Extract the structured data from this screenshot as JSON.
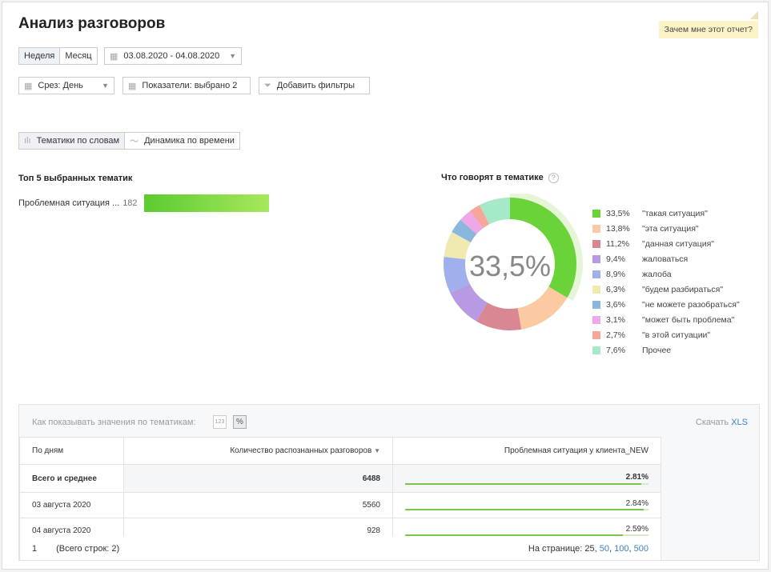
{
  "header": {
    "title": "Анализ разговоров",
    "why_label": "Зачем мне этот отчет?"
  },
  "period": {
    "week": "Неделя",
    "month": "Месяц",
    "date_range": "03.08.2020 - 04.08.2020"
  },
  "filters": {
    "slice": "Срез: День",
    "metrics": "Показатели: выбрано 2",
    "add_filters": "Добавить фильтры"
  },
  "tabs": [
    {
      "label": "Тематики по словам",
      "active": true
    },
    {
      "label": "Динамика по времени",
      "active": false
    }
  ],
  "top": {
    "title": "Топ 5 выбранных тематик",
    "items": [
      {
        "label": "Проблемная ситуация ...",
        "value": "182",
        "fraction": 1.0
      }
    ]
  },
  "donut": {
    "title": "Что говорят в тематике",
    "center": "33,5%",
    "highlight_index": 0,
    "slices": [
      {
        "pct": "33,5%",
        "label": "\"такая ситуация\"",
        "value": 33.5,
        "color": "#6bd33a"
      },
      {
        "pct": "13,8%",
        "label": "\"эта ситуация\"",
        "value": 13.8,
        "color": "#fbc9a2"
      },
      {
        "pct": "11,2%",
        "label": "\"данная ситуация\"",
        "value": 11.2,
        "color": "#d98793"
      },
      {
        "pct": "9,4%",
        "label": "жаловаться",
        "value": 9.4,
        "color": "#b79ae2"
      },
      {
        "pct": "8,9%",
        "label": "жалоба",
        "value": 8.9,
        "color": "#9fb0ec"
      },
      {
        "pct": "6,3%",
        "label": "\"будем разбираться\"",
        "value": 6.3,
        "color": "#f0eab0"
      },
      {
        "pct": "3,6%",
        "label": "\"не можете разобраться\"",
        "value": 3.6,
        "color": "#8ab7de"
      },
      {
        "pct": "3,1%",
        "label": "\"может быть проблема\"",
        "value": 3.1,
        "color": "#eea7e7"
      },
      {
        "pct": "2,7%",
        "label": "\"в этой ситуации\"",
        "value": 2.7,
        "color": "#f6a69a"
      },
      {
        "pct": "7,6%",
        "label": "Прочее",
        "value": 7.6,
        "color": "#a6e9c8"
      }
    ]
  },
  "table_panel": {
    "hint": "Как показывать значения по тематикам:",
    "chip_numbers": "123",
    "chip_percent": "%",
    "download_prefix": "Скачать",
    "download_link": "XLS",
    "columns": [
      "По дням",
      "Количество распознанных разговоров",
      "Проблемная ситуация у клиента_NEW"
    ],
    "sort_icon": "sort-desc-icon",
    "total": {
      "label": "Всего и среднее",
      "count": "6488",
      "share": "2.81%",
      "share_value": 2.81
    },
    "rows": [
      {
        "day": "03 августа 2020",
        "count": "5560",
        "share": "2.84%",
        "share_value": 2.84
      },
      {
        "day": "04 августа 2020",
        "count": "928",
        "share": "2.59%",
        "share_value": 2.59
      }
    ],
    "footer": {
      "page": "1",
      "total_rows": "(Всего строк: 2)",
      "per_page_label": "На странице:",
      "per_page_current": "25",
      "per_page_options": [
        "50",
        "100",
        "500"
      ]
    }
  }
}
